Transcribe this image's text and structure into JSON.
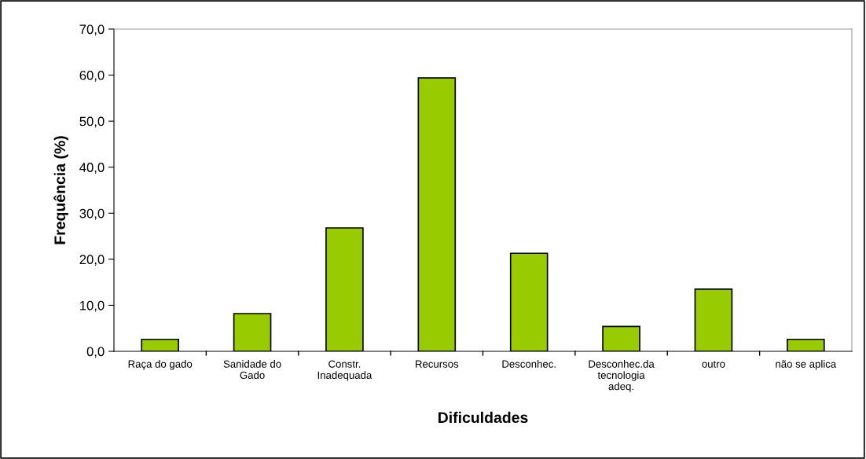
{
  "chart_data": {
    "type": "bar",
    "xlabel": "Dificuldades",
    "ylabel": "Frequência (%)",
    "categories": [
      "Raça do gado",
      "Sanidade do\nGado",
      "Constr.\nInadequada",
      "Recursos",
      "Desconhec.",
      "Desconhec.da\ntecnologia\nadeq.",
      "outro",
      "não se aplica"
    ],
    "values": [
      2.6,
      8.2,
      26.8,
      59.4,
      21.3,
      5.4,
      13.5,
      2.6
    ],
    "color": "#99cc00",
    "ylim": [
      0,
      70
    ],
    "yticks": [
      {
        "value": 0,
        "label": "0,0"
      },
      {
        "value": 10,
        "label": "10,0"
      },
      {
        "value": 20,
        "label": "20,0"
      },
      {
        "value": 30,
        "label": "30,0"
      },
      {
        "value": 40,
        "label": "40,0"
      },
      {
        "value": 50,
        "label": "50,0"
      },
      {
        "value": 60,
        "label": "60,0"
      },
      {
        "value": 70,
        "label": "70,0"
      }
    ],
    "grid": false,
    "legend": false
  }
}
